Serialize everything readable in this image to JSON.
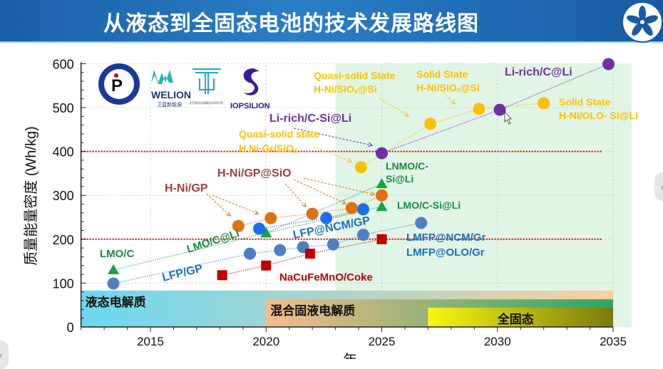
{
  "header": {
    "title": "从液态到全固态电池的技术发展路线图",
    "logo": "Chinese Academy of Sciences"
  },
  "logos": {
    "iop": "Institute of Physics CAS",
    "welion": "WELION",
    "welion_cn": "卫蓝新能源",
    "tianmu": "天目湖先进储能技术研究院",
    "iopsilion": "IOPSILION"
  },
  "chart_data": {
    "type": "scatter",
    "title": "",
    "xlabel": "年",
    "ylabel": "质量能量密度 (Wh/kg)",
    "xlim": [
      2012,
      2035
    ],
    "ylim": [
      0,
      600
    ],
    "xticks": [
      "2015",
      "2020",
      "2025",
      "2030",
      "2035"
    ],
    "yticks": [
      "0",
      "100",
      "200",
      "300",
      "400",
      "500",
      "600"
    ],
    "grid": true,
    "reference_lines": [
      {
        "y": 400,
        "color": "#e00000",
        "style": "dotted"
      },
      {
        "y": 200,
        "color": "#e00000",
        "style": "dotted"
      }
    ],
    "shaded_region": {
      "x": [
        2023,
        2035.8
      ],
      "color": "#d4f0dc"
    },
    "series": [
      {
        "id": "lfp",
        "color": "#4f7fbf",
        "marker": "circle",
        "points": [
          [
            2013.4,
            99
          ],
          [
            2019.3,
            167
          ],
          [
            2020.6,
            175
          ],
          [
            2021.6,
            182
          ],
          [
            2022.9,
            188
          ],
          [
            2024.2,
            210
          ],
          [
            2026.7,
            237
          ]
        ]
      },
      {
        "id": "lmo",
        "color": "#1aa04a",
        "marker": "triangle",
        "points": [
          [
            2013.4,
            130
          ],
          [
            2020,
            214
          ],
          [
            2025,
            326
          ]
        ]
      },
      {
        "id": "lmo2",
        "color": "#1aa04a",
        "marker": "triangle",
        "points": [
          [
            2020,
            214
          ],
          [
            2025,
            274
          ]
        ]
      },
      {
        "id": "hni",
        "color": "#e07010",
        "marker": "circle",
        "points": [
          [
            2018.8,
            230
          ],
          [
            2020.2,
            248
          ],
          [
            2022,
            258
          ],
          [
            2023.7,
            271
          ],
          [
            2025,
            300
          ]
        ]
      },
      {
        "id": "lfpncm",
        "color": "#1a6fe8",
        "marker": "circle",
        "points": [
          [
            2019.7,
            224
          ],
          [
            2022.6,
            248
          ],
          [
            2024.2,
            268
          ]
        ]
      },
      {
        "id": "na",
        "color": "#c00000",
        "marker": "square",
        "points": [
          [
            2018.1,
            118
          ],
          [
            2020,
            140
          ],
          [
            2021.9,
            167
          ],
          [
            2025,
            200
          ]
        ]
      },
      {
        "id": "solid",
        "color": "#ffc000",
        "marker": "circle",
        "points": [
          [
            2024.1,
            364
          ],
          [
            2027.1,
            463
          ],
          [
            2029.2,
            497
          ],
          [
            2032,
            510
          ]
        ]
      },
      {
        "id": "lirich",
        "color": "#7030a0",
        "marker": "circle",
        "points": [
          [
            2025,
            396
          ],
          [
            2030.1,
            495
          ],
          [
            2034.8,
            599
          ]
        ]
      }
    ],
    "annotations": [
      {
        "text": "LMO/C",
        "color": "#1a8a40"
      },
      {
        "text": "LFP/GP",
        "color": "#1a6fc0"
      },
      {
        "text": "LMO/C@Li",
        "color": "#1a8a40"
      },
      {
        "text": "H-Ni/GP",
        "color": "#a0403a"
      },
      {
        "text": "H-Ni/GP@SiO",
        "color": "#a0403a"
      },
      {
        "text": "LFP@NCM/GP",
        "color": "#1a6fc0"
      },
      {
        "text": "NaCuFeMnO/Coke",
        "color": "#c00000"
      },
      {
        "text": "Quasi-solid state",
        "color": "#ffc000"
      },
      {
        "text": "H Ni-Gr/SiOₓ",
        "color": "#ffc000"
      },
      {
        "text": "Li-rich/C-Si@Li",
        "color": "#7030a0"
      },
      {
        "text": "Quasi-solid State",
        "color": "#ffc000"
      },
      {
        "text": "H-Ni/SiOₓ@Si",
        "color": "#ffc000"
      },
      {
        "text": "Solid State",
        "color": "#ffc000"
      },
      {
        "text": "H-Ni/SiOₓ@Si",
        "color": "#ffc000"
      },
      {
        "text": "Li-rich/C@Li",
        "color": "#7030a0"
      },
      {
        "text": "Solid State",
        "color": "#ffc000"
      },
      {
        "text": "H-Ni/OLO- Si@Li",
        "color": "#ffc000"
      },
      {
        "text": "LNMO/C-",
        "color": "#1a8a40"
      },
      {
        "text": "Si@Li",
        "color": "#1a8a40"
      },
      {
        "text": "LMO/C-Si@Li",
        "color": "#1a8a40"
      },
      {
        "text": "LMFP@NCM/Gr",
        "color": "#1a6fc0"
      },
      {
        "text": "LMFP@OLO/Gr",
        "color": "#1a6fc0"
      }
    ],
    "phases": [
      {
        "label": "液态电解质",
        "x": [
          2012,
          2035
        ]
      },
      {
        "label": "混合固液电解质",
        "x": [
          2020,
          2035
        ]
      },
      {
        "label": "全固态",
        "x": [
          2027,
          2035
        ]
      }
    ]
  }
}
